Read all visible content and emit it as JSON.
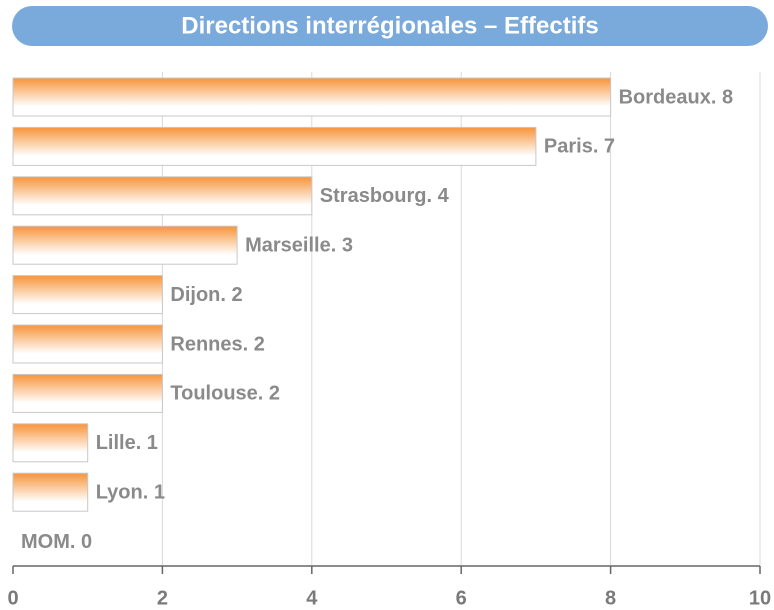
{
  "chart_data": {
    "type": "barh",
    "title": "Directions interrégionales – Effectifs",
    "values": [
      8,
      7,
      4,
      3,
      2,
      2,
      2,
      1,
      1,
      0
    ],
    "value_labels": [
      "Bordeaux. 8",
      "Paris. 7",
      "Strasbourg. 4",
      "Marseille. 3",
      "Dijon. 2",
      "Rennes. 2",
      "Toulouse. 2",
      "Lille. 1",
      "Lyon. 1",
      "MOM. 0"
    ],
    "color": "#f7943a",
    "xlim": [
      0,
      10
    ],
    "xticks": [
      0,
      2,
      4,
      6,
      8,
      10
    ],
    "grid": true
  }
}
